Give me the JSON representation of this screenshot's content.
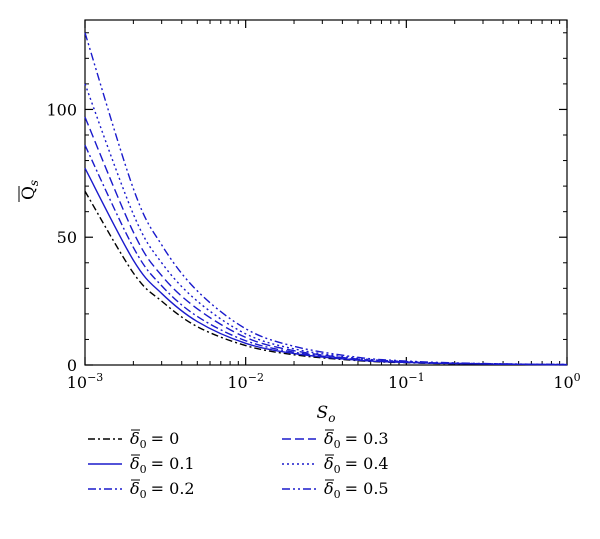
{
  "chart_data": {
    "type": "line",
    "title": "",
    "xlabel": "S",
    "xlabel_sub": "o",
    "ylabel": "Q",
    "ylabel_sub": "s",
    "x_scale": "log",
    "xlim": [
      0.001,
      1
    ],
    "ylim": [
      0,
      135
    ],
    "x_ticks": [
      {
        "value": 0.001,
        "base": "10",
        "exp": "−3"
      },
      {
        "value": 0.01,
        "base": "10",
        "exp": "−2"
      },
      {
        "value": 0.1,
        "base": "10",
        "exp": "−1"
      },
      {
        "value": 1,
        "base": "10",
        "exp": "0"
      }
    ],
    "y_ticks": [
      {
        "value": 0,
        "label": "0"
      },
      {
        "value": 50,
        "label": "50"
      },
      {
        "value": 100,
        "label": "100"
      }
    ],
    "grid": false,
    "legend_position": "bottom",
    "legend_symbol": "δ",
    "legend_sub": "0",
    "x": [
      0.001,
      0.002,
      0.003,
      0.005,
      0.01,
      0.02,
      0.05,
      0.1,
      0.2,
      0.5,
      1
    ],
    "series": [
      {
        "name": "= 0",
        "color": "#000000",
        "dash": "7,3,2,3",
        "values": [
          68,
          36,
          25,
          15,
          7.6,
          4.0,
          1.7,
          0.9,
          0.5,
          0.22,
          0.12
        ]
      },
      {
        "name": "= 0.1",
        "color": "#1a1acc",
        "dash": "",
        "values": [
          77,
          41,
          28,
          17,
          8.5,
          4.5,
          1.9,
          1.0,
          0.55,
          0.25,
          0.13
        ]
      },
      {
        "name": "= 0.2",
        "color": "#1a1acc",
        "dash": "8,3,2,3",
        "values": [
          86,
          46,
          31,
          19,
          9.5,
          5.0,
          2.1,
          1.1,
          0.6,
          0.27,
          0.14
        ]
      },
      {
        "name": "= 0.3",
        "color": "#1a1acc",
        "dash": "9,4",
        "values": [
          97,
          52,
          35,
          22,
          10.8,
          5.6,
          2.3,
          1.2,
          0.65,
          0.3,
          0.16
        ]
      },
      {
        "name": "= 0.4",
        "color": "#1a1acc",
        "dash": "2,3",
        "values": [
          110,
          59,
          40,
          25,
          12.2,
          6.3,
          2.6,
          1.35,
          0.72,
          0.33,
          0.18
        ]
      },
      {
        "name": "= 0.5",
        "color": "#1a1acc",
        "dash": "8,3,2,3,2,3",
        "values": [
          130,
          69,
          47,
          29,
          14.2,
          7.3,
          3.0,
          1.55,
          0.82,
          0.37,
          0.2
        ]
      }
    ]
  }
}
